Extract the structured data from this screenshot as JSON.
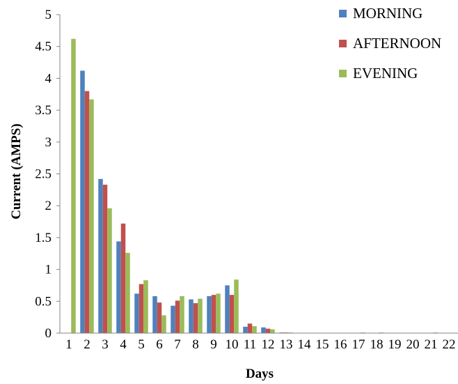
{
  "chart_data": {
    "type": "bar",
    "title": "",
    "xlabel": "Days",
    "ylabel": "Current (AMPS)",
    "ylim": [
      0,
      5
    ],
    "yticks": [
      "0",
      "0.5",
      "1",
      "1.5",
      "2",
      "2.5",
      "3",
      "3.5",
      "4",
      "4.5",
      "5"
    ],
    "grid": false,
    "legend_position": "top-right",
    "categories": [
      "1",
      "2",
      "3",
      "4",
      "5",
      "6",
      "7",
      "8",
      "9",
      "10",
      "11",
      "12",
      "13",
      "14",
      "15",
      "16",
      "17",
      "18",
      "19",
      "20",
      "21",
      "22"
    ],
    "series": [
      {
        "name": "MORNING",
        "color": "#4F81BD",
        "values": [
          0,
          4.12,
          2.42,
          1.44,
          0.62,
          0.58,
          0.43,
          0.53,
          0.58,
          0.75,
          0.1,
          0.09,
          0.01,
          0.005,
          0.005,
          0.005,
          0.005,
          0.005,
          0.005,
          0.005,
          0.005,
          0.005
        ]
      },
      {
        "name": "AFTERNOON",
        "color": "#C0504D",
        "values": [
          0,
          3.8,
          2.33,
          1.72,
          0.77,
          0.48,
          0.51,
          0.47,
          0.6,
          0.6,
          0.15,
          0.07,
          0.01,
          0.005,
          0.005,
          0.005,
          0.005,
          0.005,
          0.005,
          0.005,
          0.005,
          0.005
        ]
      },
      {
        "name": "EVENING",
        "color": "#9BBB59",
        "values": [
          4.62,
          3.67,
          1.96,
          1.26,
          0.83,
          0.28,
          0.58,
          0.54,
          0.62,
          0.84,
          0.11,
          0.06,
          0.01,
          0.005,
          0.005,
          0.005,
          0.01,
          0.01,
          0.005,
          0.005,
          0.01,
          0.005
        ]
      }
    ]
  }
}
